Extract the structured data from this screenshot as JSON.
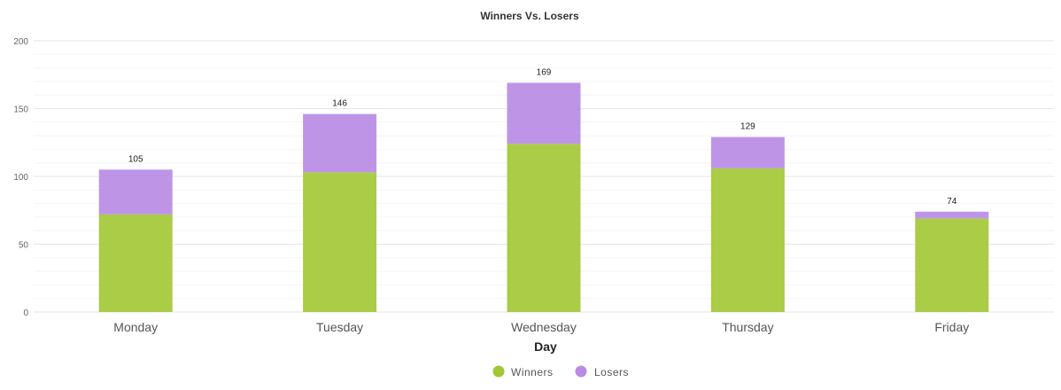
{
  "chart_data": {
    "type": "bar",
    "stacked": true,
    "title": "Winners Vs. Losers",
    "xlabel": "Day",
    "ylabel": "",
    "categories": [
      "Monday",
      "Tuesday",
      "Wednesday",
      "Thursday",
      "Friday"
    ],
    "series": [
      {
        "name": "Winners",
        "values": [
          72,
          103,
          124,
          106,
          69
        ],
        "color": "#a3c837"
      },
      {
        "name": "Losers",
        "values": [
          33,
          43,
          45,
          23,
          5
        ],
        "color": "#b98ce4"
      }
    ],
    "totals": [
      105,
      146,
      169,
      129,
      74
    ],
    "ylim": [
      0,
      200
    ],
    "yticks": [
      0,
      50,
      100,
      150,
      200
    ],
    "grid": true,
    "legend_position": "bottom-center"
  }
}
